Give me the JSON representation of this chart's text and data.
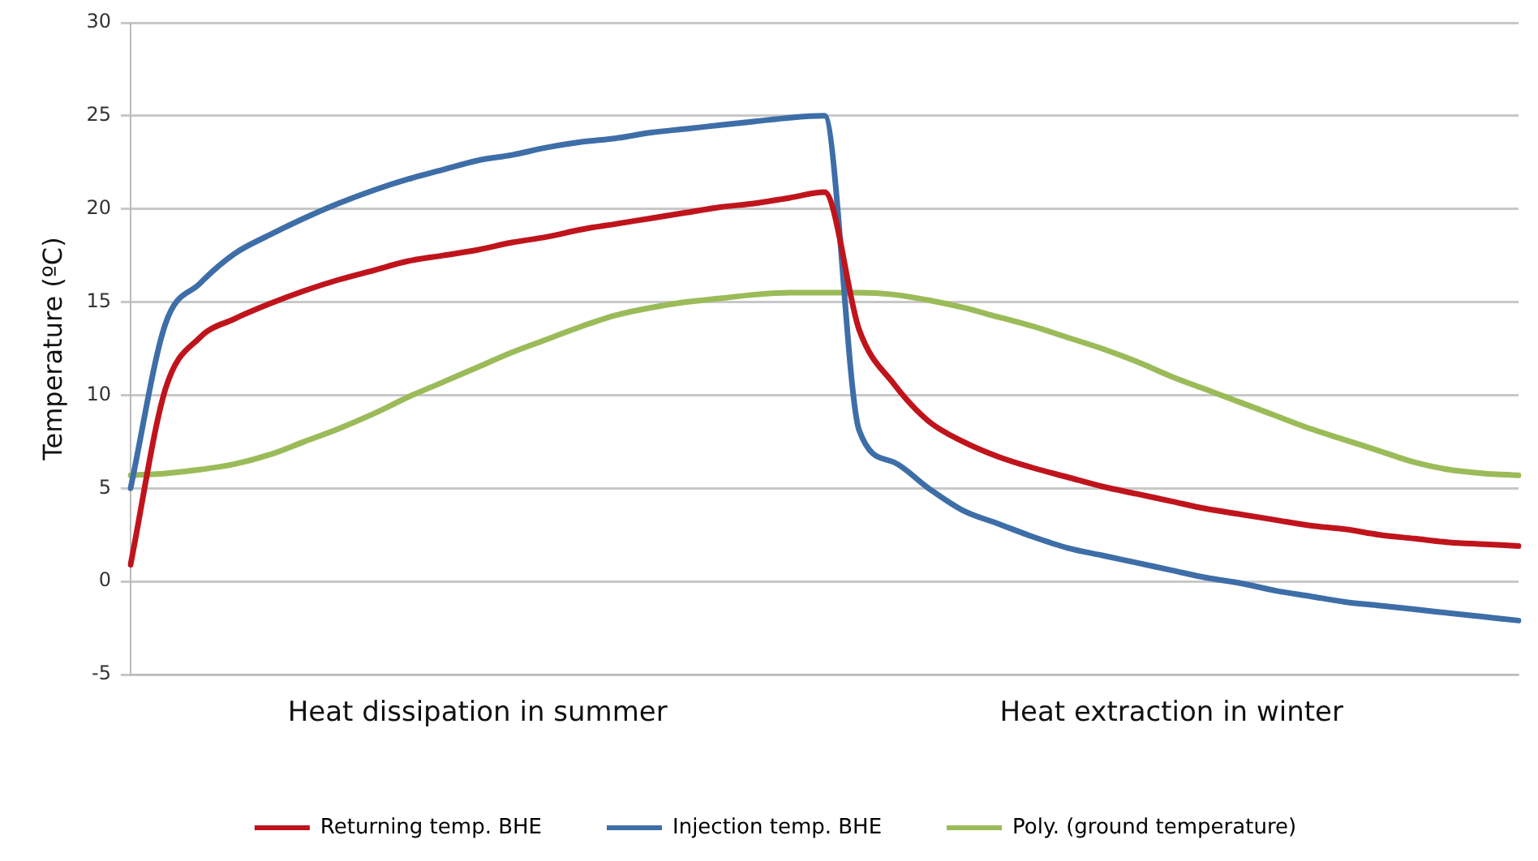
{
  "chart_data": {
    "type": "line",
    "ylabel": "Temperature (ºC)",
    "categories": [
      null,
      null,
      null,
      null,
      null,
      null,
      null,
      null,
      null,
      null,
      null,
      null,
      null,
      null,
      null,
      null,
      null,
      null,
      null,
      null,
      null,
      null,
      null,
      null,
      null,
      null,
      null,
      null,
      null,
      null,
      null,
      null,
      null,
      null,
      null,
      null,
      null,
      null,
      null,
      null,
      null
    ],
    "annotations": [
      "Heat dissipation in summer",
      "Heat extraction in winter"
    ],
    "ylim": [
      -5,
      30
    ],
    "yticks": [
      -5,
      0,
      5,
      10,
      15,
      20,
      25,
      30
    ],
    "grid": "y",
    "legend": "bottom",
    "marker": "none",
    "line_style": "solid",
    "tick_labels": "y",
    "series": [
      {
        "name": "Returning temp. BHE",
        "color": "#c0141c",
        "values": [
          0.9,
          10.3,
          13.1,
          14.1,
          14.9,
          15.6,
          16.2,
          16.7,
          17.2,
          17.5,
          17.8,
          18.2,
          18.5,
          18.9,
          19.2,
          19.5,
          19.8,
          20.1,
          20.3,
          20.6,
          20.9,
          13.5,
          10.6,
          8.6,
          7.5,
          6.7,
          6.1,
          5.6,
          5.1,
          4.7,
          4.3,
          3.9,
          3.6,
          3.3,
          3.0,
          2.8,
          2.5,
          2.3,
          2.1,
          2.0,
          1.9
        ]
      },
      {
        "name": "Injection temp. BHE",
        "color": "#3e6ea8",
        "values": [
          5.0,
          13.8,
          16.0,
          17.6,
          18.6,
          19.5,
          20.3,
          21.0,
          21.6,
          22.1,
          22.6,
          22.9,
          23.3,
          23.6,
          23.8,
          24.1,
          24.3,
          24.5,
          24.7,
          24.9,
          25.0,
          8.1,
          6.4,
          5.0,
          3.8,
          3.1,
          2.4,
          1.8,
          1.4,
          1.0,
          0.6,
          0.2,
          -0.1,
          -0.5,
          -0.8,
          -1.1,
          -1.3,
          -1.5,
          -1.7,
          -1.9,
          -2.1
        ]
      },
      {
        "name": "Poly. (ground temperature)",
        "color": "#9bbb59",
        "values": [
          5.7,
          5.8,
          6.0,
          6.3,
          6.8,
          7.5,
          8.2,
          9.0,
          9.9,
          10.7,
          11.5,
          12.3,
          13.0,
          13.7,
          14.3,
          14.7,
          15.0,
          15.2,
          15.4,
          15.5,
          15.5,
          15.5,
          15.4,
          15.1,
          14.7,
          14.2,
          13.7,
          13.1,
          12.5,
          11.8,
          11.0,
          10.3,
          9.6,
          8.9,
          8.2,
          7.6,
          7.0,
          6.4,
          6.0,
          5.8,
          5.7
        ]
      }
    ]
  }
}
